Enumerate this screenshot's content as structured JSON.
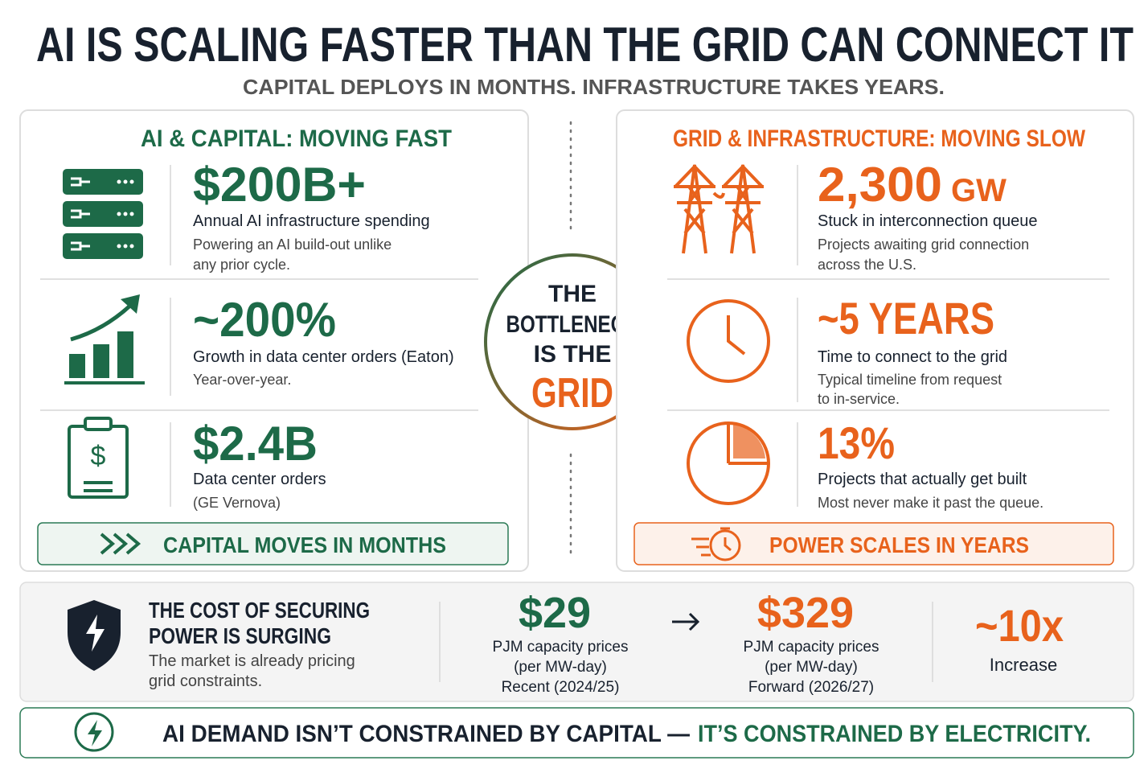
{
  "header": {
    "title": "AI IS SCALING FASTER THAN THE GRID CAN CONNECT IT",
    "subtitle": "CAPITAL DEPLOYS IN MONTHS. INFRASTRUCTURE TAKES YEARS."
  },
  "left": {
    "heading": "AI & CAPITAL: MOVING FAST",
    "items": [
      {
        "value": "$200B+",
        "label": "Annual AI infrastructure spending",
        "note": [
          "Powering an AI build-out unlike",
          "any prior cycle."
        ]
      },
      {
        "value": "~200%",
        "label": "Growth in data center orders (Eaton)",
        "note": [
          "Year-over-year."
        ]
      },
      {
        "value": "$2.4B",
        "label": "Data center orders",
        "note": [
          "(GE Vernova)"
        ]
      }
    ],
    "footer": "CAPITAL MOVES IN MONTHS"
  },
  "center": {
    "lines": [
      "THE",
      "BOTTLENECK",
      "IS THE",
      "GRID"
    ]
  },
  "right": {
    "heading": "GRID & INFRASTRUCTURE: MOVING SLOW",
    "items": [
      {
        "value": "2,300",
        "unit": "GW",
        "label": "Stuck in interconnection queue",
        "note": [
          "Projects awaiting grid connection",
          "across the U.S."
        ]
      },
      {
        "value": "~5 YEARS",
        "label": "Time to connect to the grid",
        "note": [
          "Typical timeline from request",
          "to in-service."
        ]
      },
      {
        "value": "13%",
        "label": "Projects that actually get built",
        "note": [
          "Most never make it past the queue."
        ]
      }
    ],
    "footer": "POWER SCALES IN YEARS"
  },
  "cost": {
    "title": [
      "THE COST OF SECURING",
      "POWER IS SURGING"
    ],
    "note": [
      "The market is already pricing",
      "grid constraints."
    ],
    "from": {
      "value": "$29",
      "lines": [
        "PJM capacity prices",
        "(per MW-day)",
        "Recent (2024/25)"
      ]
    },
    "to": {
      "value": "$329",
      "lines": [
        "PJM capacity prices",
        "(per MW-day)",
        "Forward (2026/27)"
      ]
    },
    "change": {
      "value": "~10x",
      "label": "Increase"
    }
  },
  "banner": {
    "part1": "AI DEMAND ISN’T CONSTRAINED BY CAPITAL —",
    "part2": "IT’S CONSTRAINED BY ELECTRICITY."
  }
}
